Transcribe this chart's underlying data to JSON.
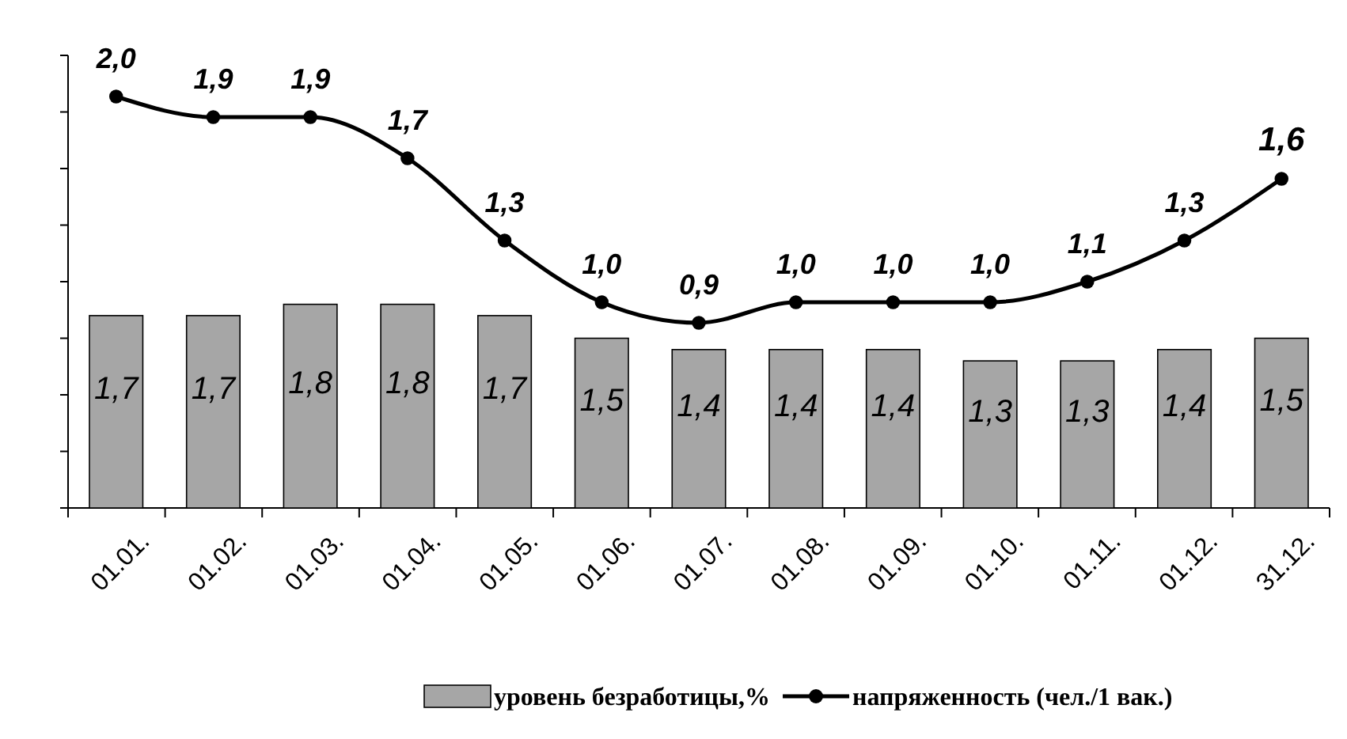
{
  "chart_data": {
    "type": "bar",
    "categories": [
      "01.01.",
      "01.02.",
      "01.03.",
      "01.04.",
      "01.05.",
      "01.06.",
      "01.07.",
      "01.08.",
      "01.09.",
      "01.10.",
      "01.11.",
      "01.12.",
      "31.12."
    ],
    "series": [
      {
        "name": "уровень безработицы,%",
        "color": "#a6a6a6",
        "values": [
          1.7,
          1.7,
          1.8,
          1.8,
          1.7,
          1.5,
          1.4,
          1.4,
          1.4,
          1.3,
          1.3,
          1.4,
          1.5
        ],
        "value_labels": [
          "1,7",
          "1,7",
          "1,8",
          "1,8",
          "1,7",
          "1,5",
          "1,4",
          "1,4",
          "1,4",
          "1,3",
          "1,3",
          "1,4",
          "1,5"
        ]
      },
      {
        "name": "напряженность (чел./1 вак.)",
        "type": "line",
        "axis": "y2",
        "color": "#000000",
        "marker": "circle",
        "values": [
          2.0,
          1.9,
          1.9,
          1.7,
          1.3,
          1.0,
          0.9,
          1.0,
          1.0,
          1.0,
          1.1,
          1.3,
          1.6
        ],
        "value_labels": [
          "2,0",
          "1,9",
          "1,9",
          "1,7",
          "1,3",
          "1,0",
          "0,9",
          "1,0",
          "1,0",
          "1,0",
          "1,1",
          "1,3",
          "1,6"
        ]
      }
    ],
    "ylim": [
      0,
      4
    ],
    "yticks": [
      {
        "value": 0,
        "label": null
      },
      {
        "value": 0.5,
        "label": null
      },
      {
        "value": 1,
        "label": null
      },
      {
        "value": 1.5,
        "label": null
      },
      {
        "value": 2,
        "label": null
      },
      {
        "value": 2.5,
        "label": null
      },
      {
        "value": 3,
        "label": null
      },
      {
        "value": 3.5,
        "label": null
      },
      {
        "value": 4,
        "label": null
      }
    ],
    "y2lim": [
      0,
      2.2
    ],
    "tick_labels": "x",
    "grid": false,
    "legend": "bottom"
  }
}
